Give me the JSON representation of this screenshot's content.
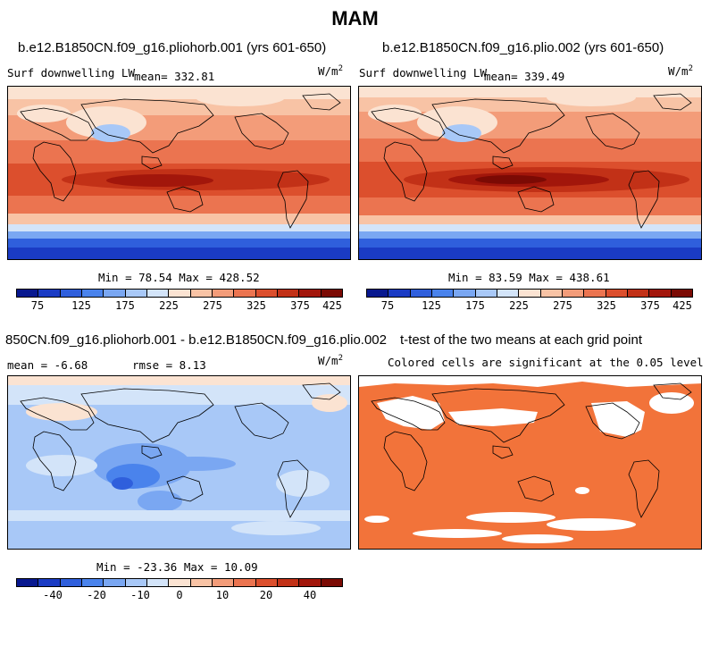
{
  "figure": {
    "title": "MAM"
  },
  "panel1": {
    "title": "b.e12.B1850CN.f09_g16.pliohorb.001 (yrs 601-650)",
    "variable": "Surf downwelling LW",
    "mean_label": "mean= 332.81",
    "units": "W/m",
    "units_exp": "2",
    "stats": "Min =  78.54 Max = 428.52"
  },
  "panel2": {
    "title": "b.e12.B1850CN.f09_g16.plio.002 (yrs 601-650)",
    "variable": "Surf downwelling LW",
    "mean_label": "mean= 339.49",
    "units": "W/m",
    "units_exp": "2",
    "stats": "Min =  83.59 Max = 438.61"
  },
  "panel3": {
    "title": "850CN.f09_g16.pliohorb.001 - b.e12.B1850CN.f09_g16.plio.002",
    "mean_label": "mean =  -6.68",
    "rmse_label": "rmse =   8.13",
    "units": "W/m",
    "units_exp": "2",
    "stats": "Min = -23.36 Max =  10.09"
  },
  "panel4": {
    "title": "t-test of the two means at each grid point",
    "subtitle": "Colored cells are significant at the 0.05 level",
    "color": "#f2733a"
  },
  "colorbar_abs": {
    "colors": [
      "#08188f",
      "#1a3bc4",
      "#2f5fdc",
      "#4a83ec",
      "#7aa7f2",
      "#a8c8f7",
      "#d3e4f9",
      "#fbe3d2",
      "#f8c3a5",
      "#f39c79",
      "#eb7450",
      "#dc4f2d",
      "#c23117",
      "#a2160b",
      "#7b0a04"
    ],
    "tick_labels": [
      "75",
      "125",
      "175",
      "225",
      "275",
      "325",
      "375",
      "425"
    ]
  },
  "colorbar_diff": {
    "colors": [
      "#08188f",
      "#1a3bc4",
      "#2f5fdc",
      "#4a83ec",
      "#7aa7f2",
      "#a8c8f7",
      "#d3e4f9",
      "#fbe3d2",
      "#f8c3a5",
      "#f39c79",
      "#eb7450",
      "#dc4f2d",
      "#c23117",
      "#a2160b",
      "#7b0a04"
    ],
    "tick_labels": [
      "-40",
      "-20",
      "-10",
      "0",
      "10",
      "20",
      "40"
    ]
  }
}
